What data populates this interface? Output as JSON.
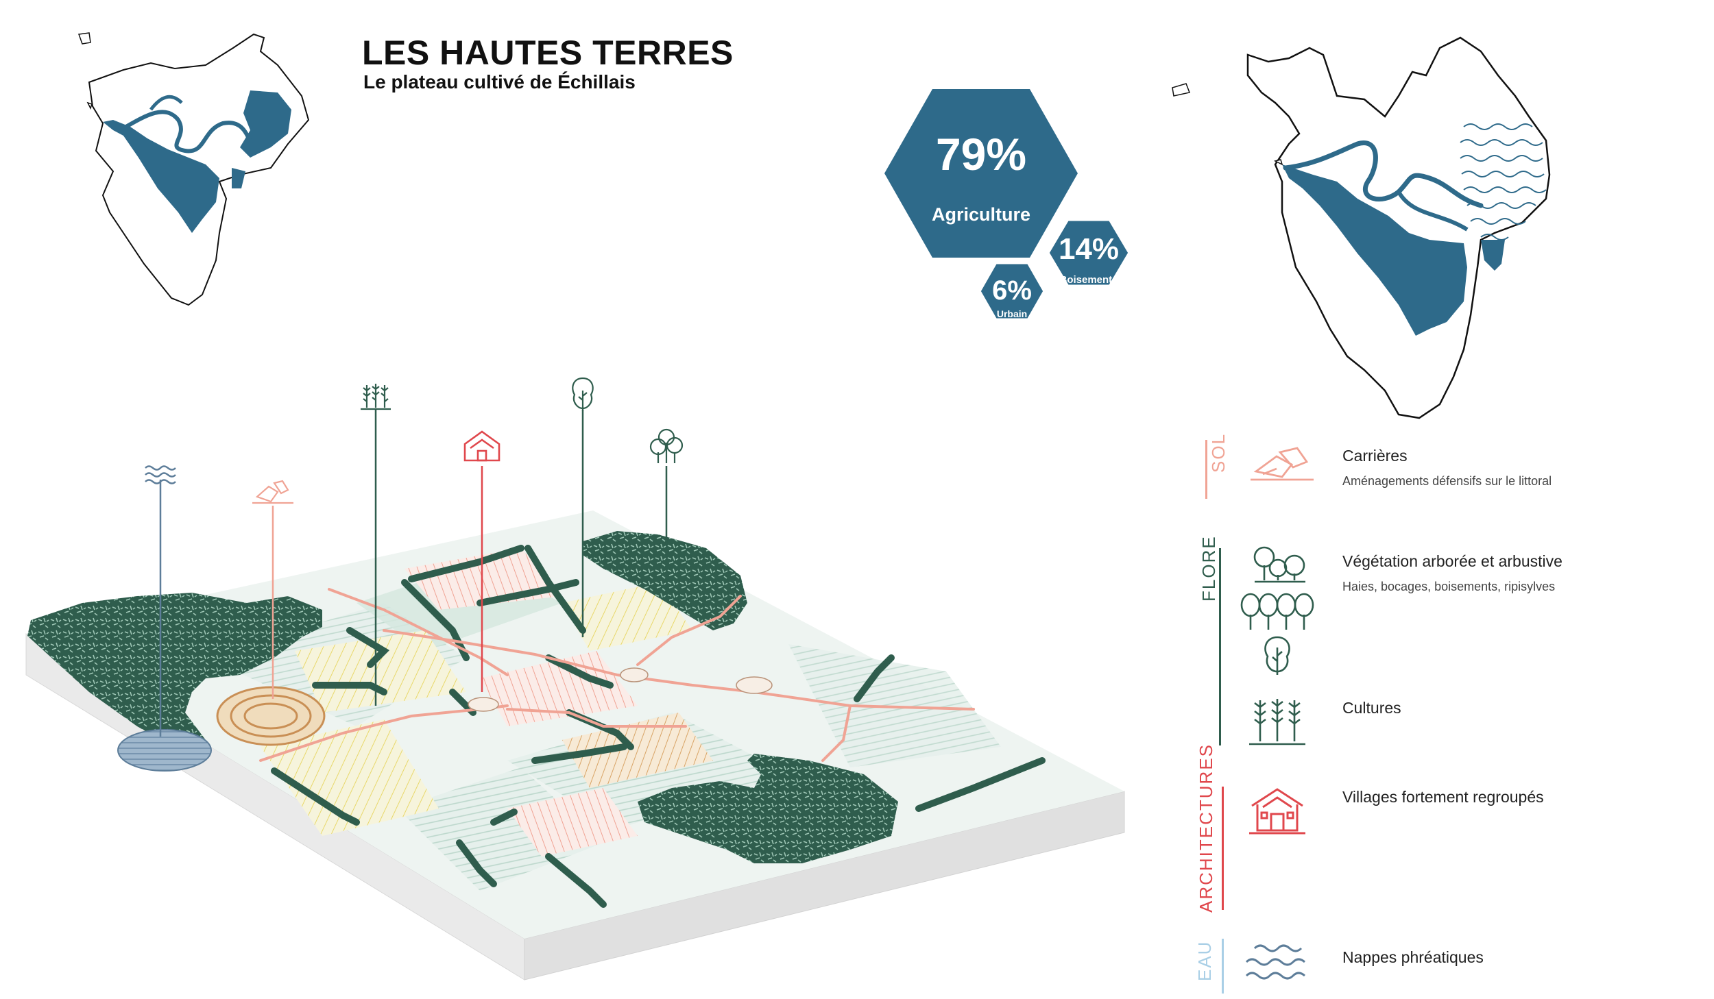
{
  "header": {
    "title": "LES HAUTES TERRES",
    "subtitle": "Le plateau cultivé de Échillais"
  },
  "stats": [
    {
      "value": "79%",
      "label": "Agriculture"
    },
    {
      "value": "14%",
      "label": "Boisements"
    },
    {
      "value": "6%",
      "label": "Urbain"
    }
  ],
  "legend": {
    "sol": {
      "category": "SOL",
      "items": [
        {
          "icon": "quarry-stones-icon",
          "title": "Carrières",
          "subtitle": "Aménagements défensifs sur le littoral"
        }
      ]
    },
    "flore": {
      "category": "FLORE",
      "items": [
        {
          "icon": "trees-icon",
          "title": "Végétation arborée et arbustive",
          "subtitle": "Haies, bocages, boisements, ripisylves"
        },
        {
          "icon": "wheat-icon",
          "title": "Cultures",
          "subtitle": ""
        }
      ]
    },
    "architecture": {
      "category": "ARCHITECTURES",
      "items": [
        {
          "icon": "house-icon",
          "title": "Villages fortement regroupés",
          "subtitle": ""
        }
      ]
    },
    "eau": {
      "category": "EAU",
      "items": [
        {
          "icon": "waves-icon",
          "title": "Nappes phréatiques",
          "subtitle": ""
        }
      ]
    }
  },
  "colors": {
    "blue": "#2e6a8a",
    "forest": "#2f5d4d",
    "salmon": "#f0a394",
    "red": "#e0474c",
    "light_blue": "#a9cfe6",
    "mint": "#dcebe6",
    "yellow": "#ecdf7a"
  }
}
